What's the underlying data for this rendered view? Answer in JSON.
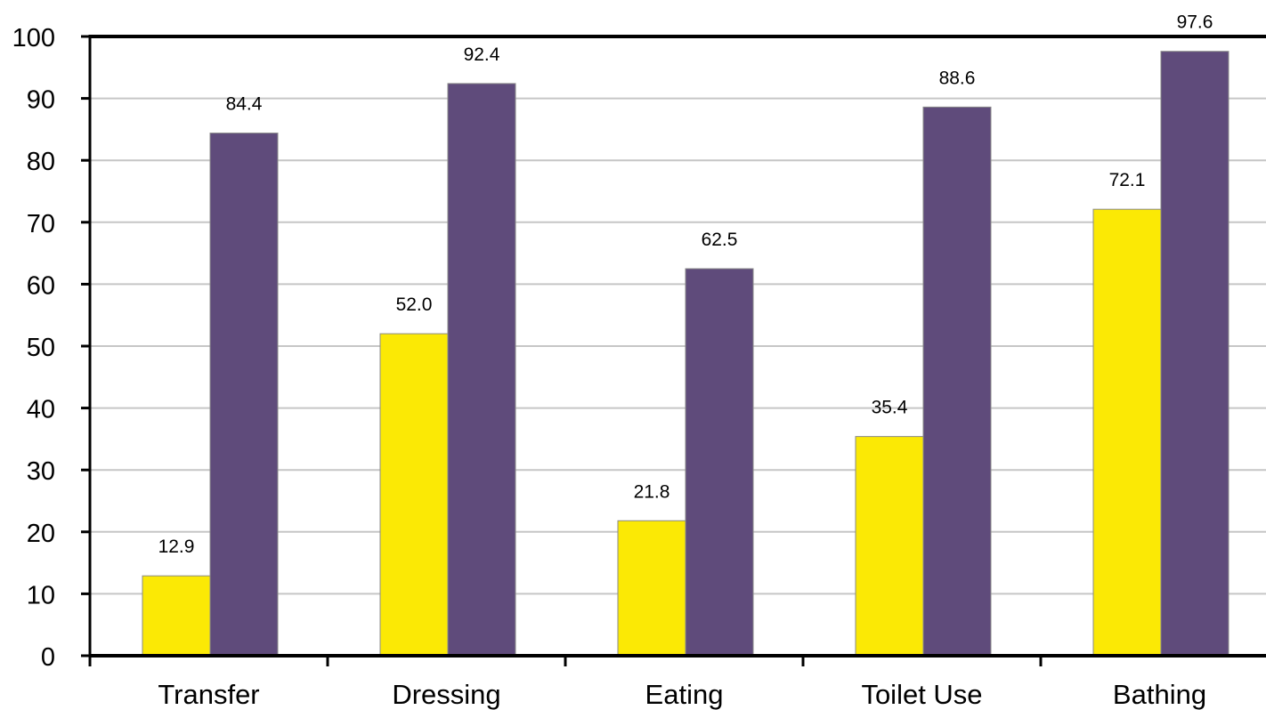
{
  "chart_data": {
    "type": "bar",
    "categories": [
      "Transfer",
      "Dressing",
      "Eating",
      "Toilet Use",
      "Bathing"
    ],
    "series": [
      {
        "values": [
          12.9,
          52.0,
          21.8,
          35.4,
          72.1
        ],
        "color": "#FBE905"
      },
      {
        "values": [
          84.4,
          92.4,
          62.5,
          88.6,
          97.6
        ],
        "color": "#5F4B7B"
      }
    ],
    "data_labels": [
      [
        "12.9",
        "52.0",
        "21.8",
        "35.4",
        "72.1"
      ],
      [
        "84.4",
        "92.4",
        "62.5",
        "88.6",
        "97.6"
      ]
    ],
    "yticks": [
      "0",
      "10",
      "20",
      "30",
      "40",
      "50",
      "60",
      "70",
      "80",
      "90",
      "100"
    ],
    "ylim": [
      0,
      100
    ],
    "title": "",
    "xlabel": "",
    "ylabel": "",
    "grid": true,
    "legend": "none"
  }
}
